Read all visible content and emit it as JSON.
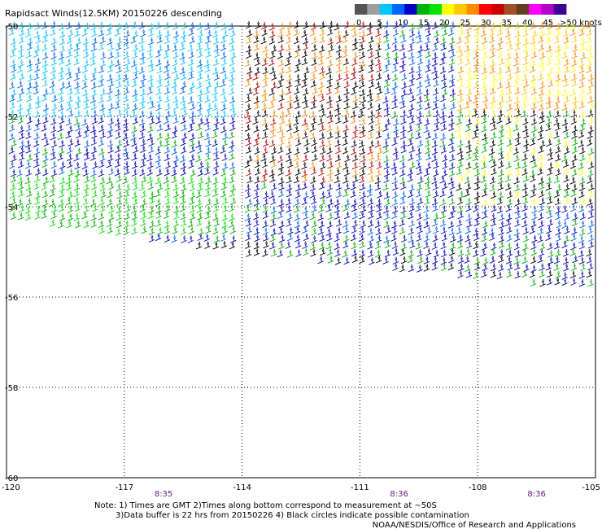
{
  "title": "Rapidsact Winds(12.5KM) 20150226 descending",
  "legend": {
    "unit_label": ">50 knots",
    "tick_labels": [
      "0",
      "5",
      "10",
      "15",
      "20",
      "25",
      "30",
      "35",
      "40",
      "45"
    ],
    "colors": [
      "#555555",
      "#9e9e9e",
      "#00c8ff",
      "#0064ff",
      "#0000c8",
      "#00b400",
      "#00e600",
      "#ffff00",
      "#ffc800",
      "#ff8c00",
      "#ff0000",
      "#c80000",
      "#a05028",
      "#643c1e",
      "#ff00ff",
      "#b400c8",
      "#3c0096"
    ]
  },
  "map": {
    "lon_range": [
      -120,
      -105
    ],
    "lat_range": [
      -50,
      -60
    ],
    "lon_labels": [
      "-120",
      "-117",
      "-114",
      "-111",
      "-108",
      "-105"
    ],
    "lat_labels": [
      "-50",
      "-52",
      "-54",
      "-56",
      "-58",
      "-60"
    ],
    "pass_times": [
      "8:35",
      "8:36",
      "8:36"
    ],
    "pass_time_lons": [
      -116,
      -110,
      -106.5
    ]
  },
  "notes": [
    "Note: 1) Times are GMT 2)Times along bottom correspond to measurement at ~50S",
    "3)Data buffer is 22 hrs from 20150226 4) Black circles indicate possible contamination"
  ],
  "credit": "NOAA/NESDIS/Office of Research and Applications",
  "icons": [
    "wind-barb-icon"
  ]
}
